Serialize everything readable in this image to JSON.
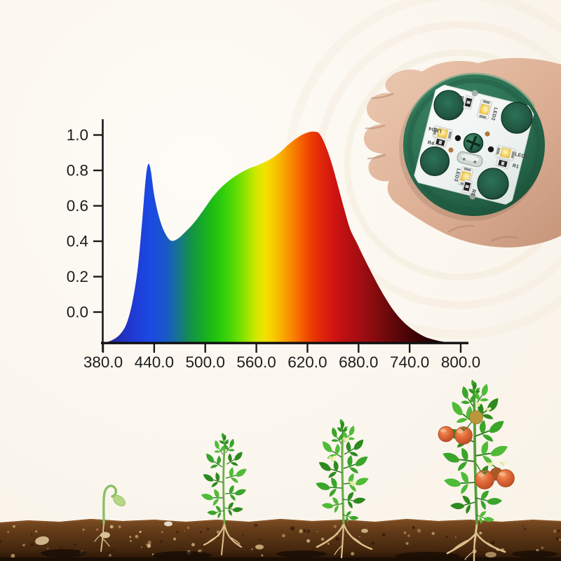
{
  "page": {
    "background": "#fbf7f0",
    "description_names": [
      "spectrum-chart",
      "hand-holding-led-module-photo",
      "plant-growth-stages-illustration"
    ]
  },
  "chart_data": {
    "type": "area",
    "title": "",
    "xlabel": "",
    "ylabel": "",
    "xlim": [
      380,
      800
    ],
    "ylim": [
      0,
      1.0
    ],
    "baseline_value": -0.175,
    "grid": false,
    "legend": "none",
    "x_ticks": [
      {
        "value": 380,
        "label": "380.0"
      },
      {
        "value": 440,
        "label": "440.0"
      },
      {
        "value": 500,
        "label": "500.0"
      },
      {
        "value": 560,
        "label": "560.0"
      },
      {
        "value": 620,
        "label": "620.0"
      },
      {
        "value": 680,
        "label": "680.0"
      },
      {
        "value": 740,
        "label": "740.0"
      },
      {
        "value": 800,
        "label": "800.0"
      }
    ],
    "y_ticks": [
      {
        "value": 0.0,
        "label": "0.0"
      },
      {
        "value": 0.2,
        "label": "0.2"
      },
      {
        "value": 0.4,
        "label": "0.4"
      },
      {
        "value": 0.6,
        "label": "0.6"
      },
      {
        "value": 0.8,
        "label": "0.8"
      },
      {
        "value": 1.0,
        "label": "1.0"
      }
    ],
    "peaks": [
      {
        "name": "blue-peak",
        "wavelength": 433,
        "value": 0.84
      },
      {
        "name": "valley",
        "wavelength": 461,
        "value": 0.4
      },
      {
        "name": "red-peak",
        "wavelength": 627,
        "value": 1.02
      }
    ],
    "points": [
      [
        380,
        -0.175
      ],
      [
        390,
        -0.16
      ],
      [
        400,
        -0.125
      ],
      [
        408,
        -0.06
      ],
      [
        415,
        0.07
      ],
      [
        421,
        0.26
      ],
      [
        426,
        0.52
      ],
      [
        430,
        0.75
      ],
      [
        433,
        0.835
      ],
      [
        436,
        0.8
      ],
      [
        440,
        0.66
      ],
      [
        445,
        0.55
      ],
      [
        450,
        0.475
      ],
      [
        456,
        0.42
      ],
      [
        461,
        0.402
      ],
      [
        468,
        0.415
      ],
      [
        476,
        0.45
      ],
      [
        486,
        0.5
      ],
      [
        497,
        0.57
      ],
      [
        508,
        0.645
      ],
      [
        519,
        0.705
      ],
      [
        530,
        0.75
      ],
      [
        541,
        0.785
      ],
      [
        551,
        0.81
      ],
      [
        560,
        0.826
      ],
      [
        569,
        0.845
      ],
      [
        578,
        0.868
      ],
      [
        588,
        0.903
      ],
      [
        597,
        0.943
      ],
      [
        606,
        0.978
      ],
      [
        614,
        1.002
      ],
      [
        621,
        1.015
      ],
      [
        627,
        1.019
      ],
      [
        633,
        1.012
      ],
      [
        638,
        0.975
      ],
      [
        644,
        0.905
      ],
      [
        650,
        0.815
      ],
      [
        656,
        0.71
      ],
      [
        663,
        0.585
      ],
      [
        670,
        0.47
      ],
      [
        678,
        0.39
      ],
      [
        687,
        0.3
      ],
      [
        696,
        0.215
      ],
      [
        706,
        0.125
      ],
      [
        716,
        0.045
      ],
      [
        726,
        -0.02
      ],
      [
        736,
        -0.07
      ],
      [
        747,
        -0.11
      ],
      [
        758,
        -0.14
      ],
      [
        770,
        -0.158
      ],
      [
        780,
        -0.168
      ],
      [
        790,
        -0.173
      ],
      [
        800,
        -0.175
      ]
    ],
    "gradient": [
      [
        380,
        "#23238f"
      ],
      [
        400,
        "#232fb8"
      ],
      [
        418,
        "#1f3cd6"
      ],
      [
        435,
        "#1b49e4"
      ],
      [
        452,
        "#1956cc"
      ],
      [
        466,
        "#176f9c"
      ],
      [
        480,
        "#148b55"
      ],
      [
        494,
        "#16a52c"
      ],
      [
        508,
        "#1dbc15"
      ],
      [
        522,
        "#33cf0b"
      ],
      [
        536,
        "#5fdc03"
      ],
      [
        548,
        "#95e400"
      ],
      [
        560,
        "#d2e800"
      ],
      [
        570,
        "#f2e200"
      ],
      [
        581,
        "#f8c800"
      ],
      [
        592,
        "#f9a600"
      ],
      [
        603,
        "#f88200"
      ],
      [
        613,
        "#f56000"
      ],
      [
        623,
        "#ee4103"
      ],
      [
        635,
        "#e2280a"
      ],
      [
        648,
        "#d31810"
      ],
      [
        662,
        "#c01013"
      ],
      [
        678,
        "#a80e12"
      ],
      [
        695,
        "#8e0c0f"
      ],
      [
        713,
        "#6f090b"
      ],
      [
        731,
        "#520507"
      ],
      [
        750,
        "#380304"
      ],
      [
        768,
        "#200102"
      ],
      [
        785,
        "#0d0001"
      ],
      [
        800,
        "#030000"
      ]
    ]
  },
  "led_module": {
    "leds": [
      "LED1",
      "LED2",
      "LED3",
      "LED4"
    ],
    "resistors": [
      "R1",
      "R2",
      "R3",
      "R4"
    ],
    "board_color": "#2b6f52",
    "pcb_color": "#eff3f1",
    "led_chip_color": "#f5ce4a"
  },
  "growth_illustration": {
    "stages": [
      "sprout",
      "seedling",
      "flowering-plant",
      "fruiting-plant"
    ],
    "soil_color": "#5d3616",
    "tomato_color": "#dd6a3c",
    "flower_color": "#e9edad"
  }
}
